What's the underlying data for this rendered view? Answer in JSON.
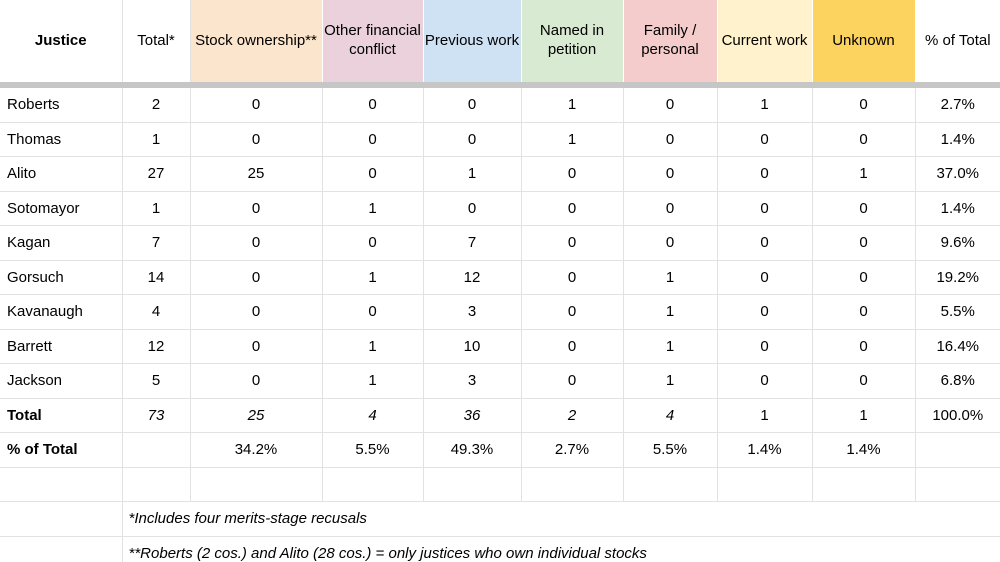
{
  "chart_data": {
    "type": "table",
    "columns": [
      {
        "label": "Justice",
        "bg": "#ffffff"
      },
      {
        "label": "Total*",
        "bg": "#ffffff"
      },
      {
        "label": "Stock ownership**",
        "bg": "#fce5cd"
      },
      {
        "label": "Other financial conflict",
        "bg": "#ead1dc"
      },
      {
        "label": "Previous work",
        "bg": "#cfe2f3"
      },
      {
        "label": "Named in petition",
        "bg": "#d9ead3"
      },
      {
        "label": "Family / personal",
        "bg": "#f4cccc"
      },
      {
        "label": "Current work",
        "bg": "#fff2cc"
      },
      {
        "label": "Unknown",
        "bg": "#fbd35e"
      },
      {
        "label": "% of Total",
        "bg": "#ffffff"
      }
    ],
    "rows": [
      {
        "justice": "Roberts",
        "values": [
          "2",
          "0",
          "0",
          "0",
          "1",
          "0",
          "1",
          "0",
          "2.7%"
        ]
      },
      {
        "justice": "Thomas",
        "values": [
          "1",
          "0",
          "0",
          "0",
          "1",
          "0",
          "0",
          "0",
          "1.4%"
        ]
      },
      {
        "justice": "Alito",
        "values": [
          "27",
          "25",
          "0",
          "1",
          "0",
          "0",
          "0",
          "1",
          "37.0%"
        ]
      },
      {
        "justice": "Sotomayor",
        "values": [
          "1",
          "0",
          "1",
          "0",
          "0",
          "0",
          "0",
          "0",
          "1.4%"
        ]
      },
      {
        "justice": "Kagan",
        "values": [
          "7",
          "0",
          "0",
          "7",
          "0",
          "0",
          "0",
          "0",
          "9.6%"
        ]
      },
      {
        "justice": "Gorsuch",
        "values": [
          "14",
          "0",
          "1",
          "12",
          "0",
          "1",
          "0",
          "0",
          "19.2%"
        ]
      },
      {
        "justice": "Kavanaugh",
        "values": [
          "4",
          "0",
          "0",
          "3",
          "0",
          "1",
          "0",
          "0",
          "5.5%"
        ]
      },
      {
        "justice": "Barrett",
        "values": [
          "12",
          "0",
          "1",
          "10",
          "0",
          "1",
          "0",
          "0",
          "16.4%"
        ]
      },
      {
        "justice": "Jackson",
        "values": [
          "5",
          "0",
          "1",
          "3",
          "0",
          "1",
          "0",
          "0",
          "6.8%"
        ]
      }
    ],
    "total_row": {
      "label": "Total",
      "values": [
        "73",
        "25",
        "4",
        "36",
        "2",
        "4",
        "1",
        "1",
        "100.0%"
      ],
      "italic_flags": [
        true,
        true,
        true,
        true,
        true,
        true,
        false,
        false,
        false
      ]
    },
    "pct_row": {
      "label": "% of Total",
      "values": [
        "",
        "34.2%",
        "5.5%",
        "49.3%",
        "2.7%",
        "5.5%",
        "1.4%",
        "1.4%",
        ""
      ]
    },
    "footnotes": [
      "*Includes four merits-stage recusals",
      "**Roberts (2 cos.) and Alito (28 cos.) = only justices who own individual stocks"
    ],
    "layout": {
      "grid": true,
      "legend_position": "none"
    },
    "colors": {
      "divider_bar": "#c6c6c6",
      "gridline": "#e2e2e2"
    }
  }
}
